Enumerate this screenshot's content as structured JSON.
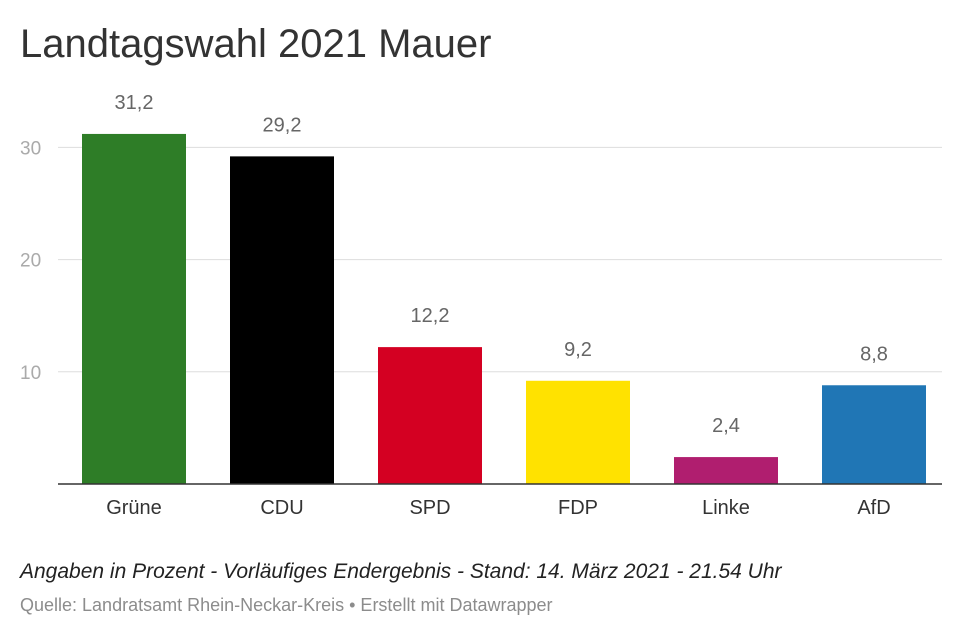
{
  "chart_data": {
    "type": "bar",
    "title": "Landtagswahl 2021 Mauer",
    "categories": [
      "Grüne",
      "CDU",
      "SPD",
      "FDP",
      "Linke",
      "AfD"
    ],
    "values": [
      31.2,
      29.2,
      12.2,
      9.2,
      2.4,
      8.8
    ],
    "value_labels": [
      "31,2",
      "29,2",
      "12,2",
      "9,2",
      "2,4",
      "8,8"
    ],
    "colors": [
      "#2e7d27",
      "#000000",
      "#d40022",
      "#ffe200",
      "#b01e6f",
      "#2076b5"
    ],
    "yticks": [
      10,
      20,
      30
    ],
    "ytick_labels": [
      "10",
      "20",
      "30"
    ],
    "ylim": [
      0,
      32
    ],
    "grid": true,
    "xlabel": "",
    "ylabel": ""
  },
  "footer": {
    "note": "Angaben in Prozent - Vorläufiges Endergebnis - Stand: 14. März 2021 - 21.54 Uhr",
    "source": "Quelle: Landratsamt Rhein-Neckar-Kreis • Erstellt mit Datawrapper"
  }
}
